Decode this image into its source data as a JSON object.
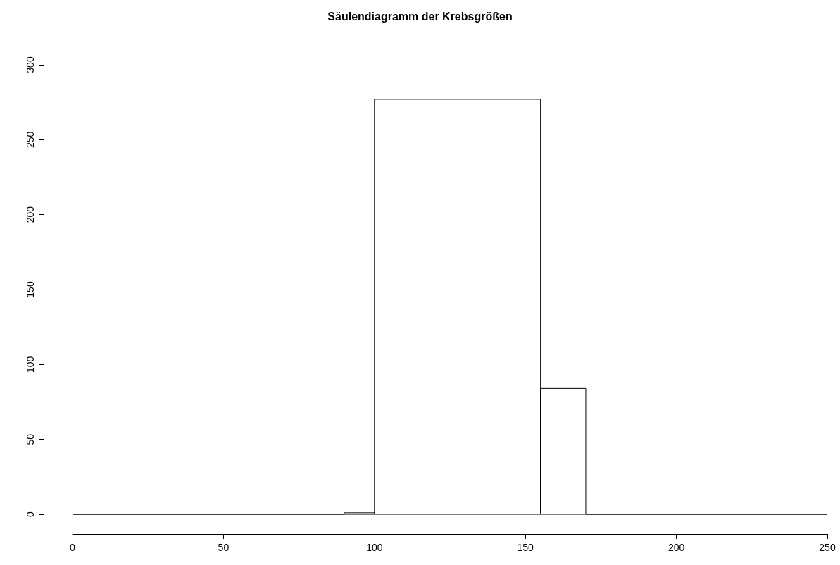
{
  "chart_data": {
    "type": "histogram",
    "title": "Säulendiagramm der Krebsgrößen",
    "bins": [
      0,
      90,
      100,
      155,
      170,
      250
    ],
    "values": [
      0,
      1,
      277,
      84,
      0
    ],
    "xlim": [
      0,
      250
    ],
    "xticks": [
      0,
      50,
      100,
      150,
      200,
      250
    ],
    "ylim": [
      0,
      300
    ],
    "yticks": [
      0,
      50,
      100,
      150,
      200,
      250,
      300
    ],
    "grid": false
  }
}
